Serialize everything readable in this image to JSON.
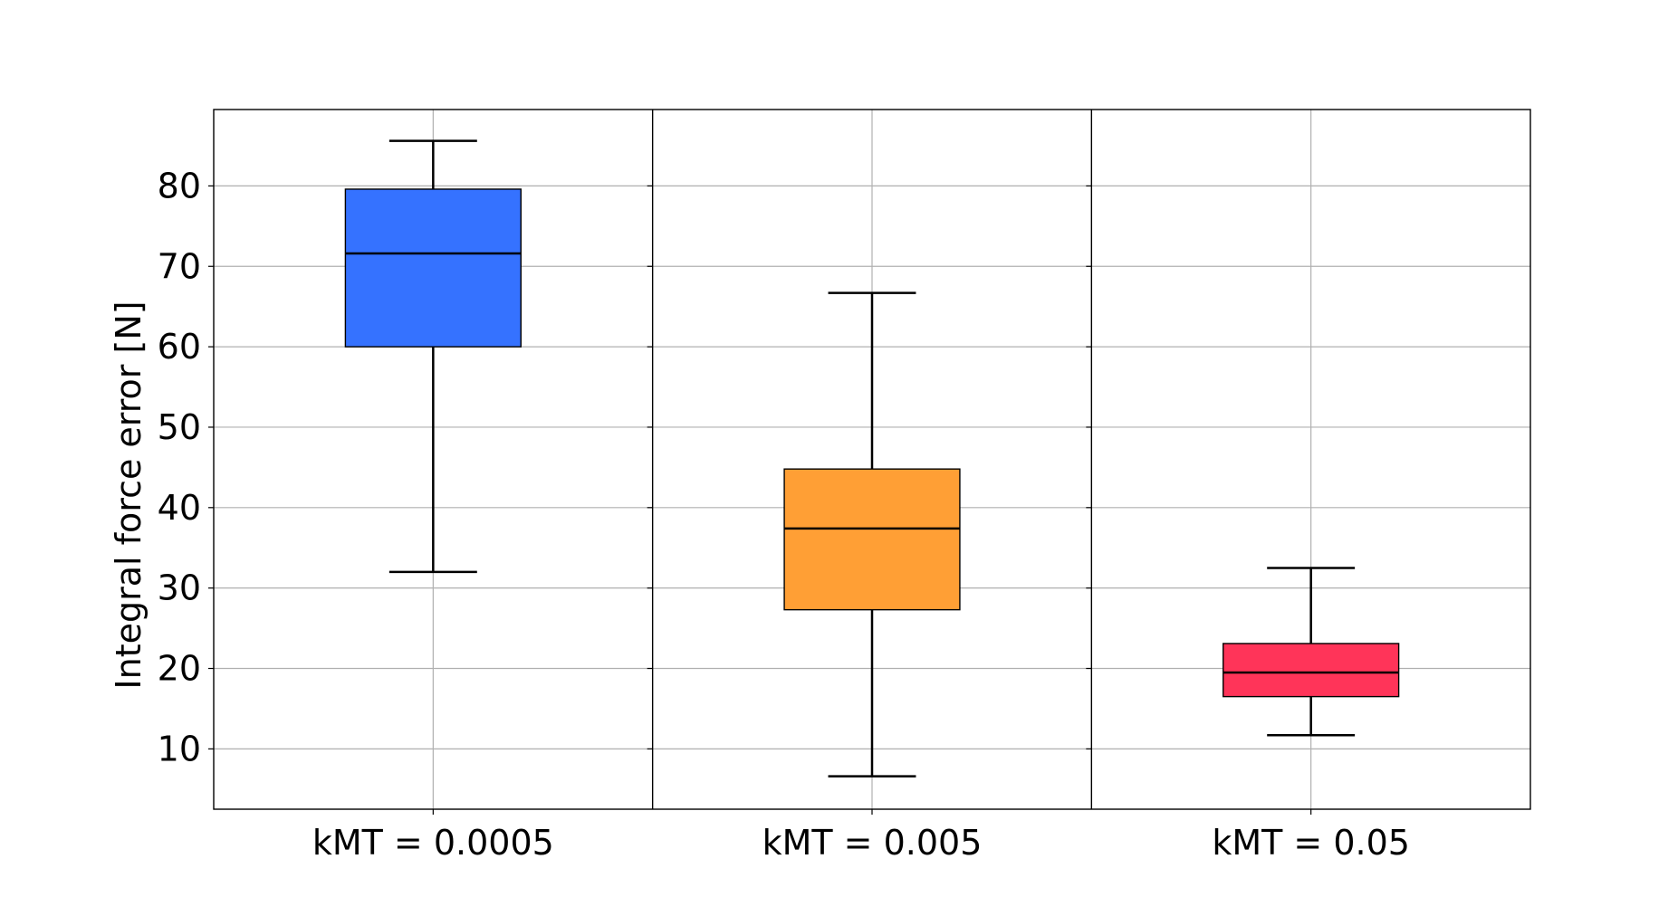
{
  "chart_data": {
    "type": "box",
    "title": "",
    "xlabel": "",
    "ylabel": "Integral force error [N]",
    "ylim": [
      2.5,
      89.5
    ],
    "yticks": [
      10,
      20,
      30,
      40,
      50,
      60,
      70,
      80
    ],
    "grid": true,
    "categories": [
      "kMT = 0.0005",
      "kMT = 0.005",
      "kMT = 0.05"
    ],
    "boxes": [
      {
        "category": "kMT = 0.0005",
        "whisker_low": 32.0,
        "q1": 60.0,
        "median": 71.6,
        "q3": 79.6,
        "whisker_high": 85.6,
        "color": "#3572FF"
      },
      {
        "category": "kMT = 0.005",
        "whisker_low": 6.6,
        "q1": 27.3,
        "median": 37.4,
        "q3": 44.8,
        "whisker_high": 66.7,
        "color": "#FF9F35"
      },
      {
        "category": "kMT = 0.05",
        "whisker_low": 11.7,
        "q1": 16.5,
        "median": 19.5,
        "q3": 23.1,
        "whisker_high": 32.5,
        "color": "#FF3459"
      }
    ]
  }
}
